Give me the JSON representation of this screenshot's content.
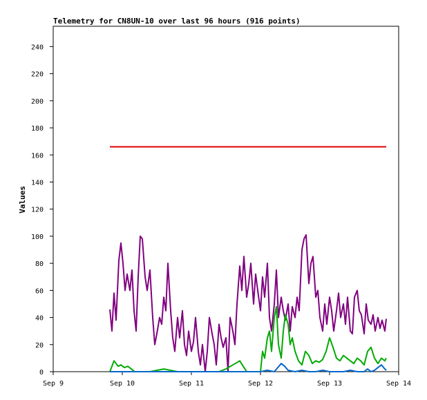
{
  "chart_data": {
    "type": "line",
    "title": "Telemetry for CN8UN-10 over last 96 hours (916 points)",
    "xlabel": "",
    "ylabel": "Values",
    "xlim": [
      "Sep 9",
      "Sep 14"
    ],
    "ylim": [
      0,
      255
    ],
    "x_ticks": [
      "Sep 9",
      "Sep 10",
      "Sep 11",
      "Sep 12",
      "Sep 13",
      "Sep 14"
    ],
    "y_ticks": [
      0,
      20,
      40,
      60,
      80,
      100,
      120,
      140,
      160,
      180,
      200,
      220,
      240
    ],
    "grid": false,
    "legend": "none",
    "series": [
      {
        "color": "#e00000",
        "x": [
          -0.18,
          3.82
        ],
        "y": [
          166,
          166
        ]
      },
      {
        "color": "#800080",
        "x": [
          -0.18,
          -0.15,
          -0.12,
          -0.09,
          -0.05,
          -0.02,
          0.01,
          0.04,
          0.07,
          0.11,
          0.14,
          0.17,
          0.2,
          0.23,
          0.26,
          0.29,
          0.33,
          0.36,
          0.4,
          0.44,
          0.47,
          0.5,
          0.54,
          0.57,
          0.6,
          0.63,
          0.66,
          0.7,
          0.73,
          0.76,
          0.8,
          0.83,
          0.87,
          0.9,
          0.93,
          0.96,
          1.0,
          1.03,
          1.06,
          1.1,
          1.13,
          1.16,
          1.2,
          1.23,
          1.26,
          1.3,
          1.33,
          1.36,
          1.4,
          1.43,
          1.46,
          1.5,
          1.53,
          1.56,
          1.6,
          1.63,
          1.66,
          1.7,
          1.73,
          1.76,
          1.8,
          1.83,
          1.86,
          1.9,
          1.93,
          1.96,
          2.0,
          2.03,
          2.06,
          2.1,
          2.13,
          2.16,
          2.2,
          2.23,
          2.26,
          2.3,
          2.33,
          2.36,
          2.4,
          2.43,
          2.46,
          2.5,
          2.53,
          2.56,
          2.6,
          2.63,
          2.66,
          2.7,
          2.73,
          2.76,
          2.8,
          2.83,
          2.86,
          2.9,
          2.93,
          2.96,
          3.0,
          3.03,
          3.06,
          3.1,
          3.13,
          3.16,
          3.2,
          3.23,
          3.26,
          3.3,
          3.33,
          3.36,
          3.4,
          3.43,
          3.46,
          3.5,
          3.53,
          3.56,
          3.6,
          3.63,
          3.66,
          3.7,
          3.73,
          3.76,
          3.8,
          3.82
        ],
        "y": [
          46,
          30,
          58,
          38,
          82,
          95,
          80,
          60,
          72,
          60,
          75,
          45,
          30,
          70,
          100,
          98,
          70,
          60,
          75,
          40,
          20,
          28,
          40,
          35,
          55,
          45,
          80,
          45,
          25,
          15,
          40,
          25,
          45,
          20,
          12,
          30,
          15,
          22,
          40,
          15,
          5,
          20,
          0,
          15,
          40,
          28,
          20,
          5,
          35,
          25,
          18,
          25,
          0,
          40,
          30,
          20,
          50,
          78,
          60,
          85,
          55,
          65,
          80,
          50,
          72,
          60,
          45,
          70,
          55,
          80,
          40,
          30,
          50,
          75,
          40,
          55,
          45,
          38,
          50,
          30,
          48,
          40,
          55,
          45,
          90,
          98,
          101,
          65,
          80,
          85,
          55,
          60,
          40,
          30,
          50,
          35,
          55,
          45,
          30,
          45,
          58,
          40,
          50,
          35,
          55,
          30,
          28,
          55,
          60,
          45,
          42,
          28,
          50,
          38,
          35,
          42,
          30,
          40,
          32,
          38,
          30,
          39
        ]
      },
      {
        "color": "#00aa00",
        "x": [
          -0.18,
          -0.12,
          -0.06,
          -0.02,
          0.03,
          0.08,
          0.13,
          0.18,
          0.22,
          0.27,
          0.3,
          0.4,
          0.6,
          0.8,
          0.9,
          1.0,
          1.2,
          1.4,
          1.5,
          1.6,
          1.7,
          1.8,
          1.9,
          2.0,
          2.03,
          2.06,
          2.1,
          2.13,
          2.16,
          2.2,
          2.23,
          2.26,
          2.3,
          2.33,
          2.36,
          2.4,
          2.43,
          2.46,
          2.5,
          2.55,
          2.6,
          2.65,
          2.7,
          2.75,
          2.8,
          2.85,
          2.9,
          2.95,
          3.0,
          3.05,
          3.1,
          3.15,
          3.2,
          3.25,
          3.3,
          3.35,
          3.4,
          3.45,
          3.5,
          3.55,
          3.6,
          3.65,
          3.7,
          3.75,
          3.8,
          3.82
        ],
        "y": [
          0,
          8,
          4,
          5,
          3,
          4,
          2,
          0,
          0,
          0,
          0,
          0,
          2,
          0,
          0,
          0,
          0,
          0,
          2,
          5,
          8,
          0,
          0,
          0,
          15,
          10,
          25,
          30,
          15,
          40,
          48,
          20,
          10,
          30,
          42,
          35,
          20,
          25,
          15,
          8,
          5,
          15,
          12,
          6,
          8,
          7,
          9,
          15,
          25,
          18,
          10,
          8,
          12,
          10,
          8,
          6,
          10,
          8,
          5,
          15,
          18,
          10,
          6,
          10,
          8,
          10
        ]
      },
      {
        "color": "#0066cc",
        "x": [
          -0.18,
          2.0,
          2.1,
          2.2,
          2.25,
          2.3,
          2.35,
          2.4,
          2.5,
          2.6,
          2.7,
          2.8,
          2.9,
          3.0,
          3.1,
          3.2,
          3.3,
          3.4,
          3.5,
          3.55,
          3.6,
          3.65,
          3.7,
          3.75,
          3.8,
          3.82
        ],
        "y": [
          0,
          0,
          1,
          0,
          3,
          6,
          4,
          1,
          0,
          1,
          0,
          0,
          1,
          0,
          0,
          0,
          1,
          0,
          0,
          2,
          0,
          1,
          3,
          5,
          2,
          1
        ]
      }
    ]
  }
}
